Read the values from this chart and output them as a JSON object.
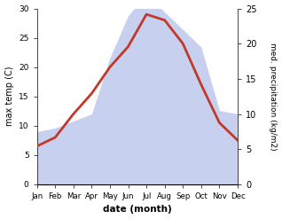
{
  "months": [
    "Jan",
    "Feb",
    "Mar",
    "Apr",
    "May",
    "Jun",
    "Jul",
    "Aug",
    "Sep",
    "Oct",
    "Nov",
    "Dec"
  ],
  "max_temp": [
    6.5,
    8.0,
    12.0,
    15.5,
    20.0,
    23.5,
    29.0,
    28.0,
    24.0,
    17.0,
    10.5,
    7.5
  ],
  "precipitation": [
    7.5,
    8.0,
    9.0,
    10.0,
    18.0,
    24.0,
    27.0,
    24.5,
    22.0,
    19.5,
    10.5,
    10.0
  ],
  "temp_color": "#c0392b",
  "precip_fill_color": "#c8d0f0",
  "temp_ylim": [
    0,
    30
  ],
  "precip_ylim": [
    0,
    25
  ],
  "temp_ylabel": "max temp (C)",
  "precip_ylabel": "med. precipitation (kg/m2)",
  "xlabel": "date (month)",
  "background_color": "#ffffff",
  "temp_linewidth": 2.0
}
